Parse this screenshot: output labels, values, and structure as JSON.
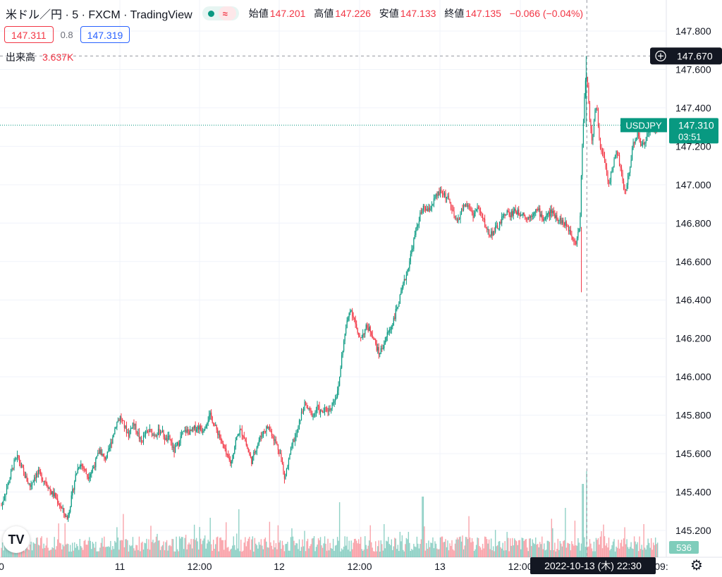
{
  "header": {
    "title": "米ドル／円 · 5 · FXCM · TradingView",
    "badge": "≈",
    "ohlc": [
      {
        "label": "始値",
        "value": "147.201"
      },
      {
        "label": "高値",
        "value": "147.226"
      },
      {
        "label": "安値",
        "value": "147.133"
      },
      {
        "label": "終値",
        "value": "147.135"
      }
    ],
    "change": "−0.066 (−0.04%)"
  },
  "quote": {
    "bid": "147.311",
    "spread": "0.8",
    "ask": "147.319"
  },
  "volume": {
    "label": "出来高",
    "value": "3.637K",
    "last_label": "536"
  },
  "crosshair": {
    "price_label": "147.670",
    "time_label": "2022-10-13 (木)  22:30"
  },
  "symbol_label": {
    "name": "USDJPY",
    "price": "147.310",
    "countdown": "03:51"
  },
  "colors": {
    "up": "#089981",
    "down": "#f23645",
    "grid": "#f0f3fa",
    "crosshair": "#9598a1"
  },
  "icons": {
    "logo": "tradingview-logo-icon",
    "settings": "gear-icon",
    "crosshair_add": "plus-circle-icon"
  },
  "chart_data": {
    "type": "candlestick",
    "symbol": "USDJPY",
    "interval": "5",
    "y_axis": {
      "ticks": [
        "147.800",
        "147.600",
        "147.400",
        "147.200",
        "147.000",
        "146.800",
        "146.600",
        "146.400",
        "146.200",
        "146.000",
        "145.800",
        "145.600",
        "145.400",
        "145.200"
      ],
      "range": [
        145.06,
        147.86
      ]
    },
    "x_axis": {
      "ticks": [
        "0",
        "11",
        "12:00",
        "12",
        "12:00",
        "13",
        "12:00",
        "09:"
      ]
    },
    "crosshair_price": 147.67,
    "last_price": 147.31,
    "price_path": [
      [
        0.0,
        145.33
      ],
      [
        0.6,
        145.4
      ],
      [
        1.2,
        145.47
      ],
      [
        1.8,
        145.55
      ],
      [
        2.4,
        145.58
      ],
      [
        3.0,
        145.52
      ],
      [
        3.6,
        145.47
      ],
      [
        4.2,
        145.43
      ],
      [
        4.8,
        145.48
      ],
      [
        5.4,
        145.5
      ],
      [
        6.0,
        145.47
      ],
      [
        6.6,
        145.45
      ],
      [
        7.2,
        145.4
      ],
      [
        7.8,
        145.38
      ],
      [
        8.4,
        145.34
      ],
      [
        9.0,
        145.3
      ],
      [
        9.6,
        145.26
      ],
      [
        10.2,
        145.36
      ],
      [
        10.8,
        145.48
      ],
      [
        11.4,
        145.55
      ],
      [
        12.0,
        145.53
      ],
      [
        12.6,
        145.48
      ],
      [
        13.2,
        145.51
      ],
      [
        13.8,
        145.56
      ],
      [
        14.4,
        145.62
      ],
      [
        15.0,
        145.57
      ],
      [
        15.6,
        145.6
      ],
      [
        16.2,
        145.68
      ],
      [
        16.8,
        145.76
      ],
      [
        17.4,
        145.79
      ],
      [
        18.0,
        145.74
      ],
      [
        18.6,
        145.7
      ],
      [
        19.2,
        145.76
      ],
      [
        19.8,
        145.72
      ],
      [
        20.4,
        145.66
      ],
      [
        21.0,
        145.7
      ],
      [
        21.6,
        145.72
      ],
      [
        22.2,
        145.7
      ],
      [
        22.8,
        145.71
      ],
      [
        23.4,
        145.72
      ],
      [
        24.0,
        145.67
      ],
      [
        24.6,
        145.68
      ],
      [
        25.2,
        145.61
      ],
      [
        25.8,
        145.65
      ],
      [
        26.4,
        145.7
      ],
      [
        27.0,
        145.72
      ],
      [
        27.6,
        145.71
      ],
      [
        28.2,
        145.73
      ],
      [
        28.8,
        145.74
      ],
      [
        29.4,
        145.72
      ],
      [
        30.0,
        145.77
      ],
      [
        30.6,
        145.8
      ],
      [
        31.2,
        145.74
      ],
      [
        31.8,
        145.7
      ],
      [
        32.4,
        145.64
      ],
      [
        33.0,
        145.58
      ],
      [
        33.6,
        145.55
      ],
      [
        34.2,
        145.66
      ],
      [
        34.8,
        145.72
      ],
      [
        35.4,
        145.7
      ],
      [
        36.0,
        145.62
      ],
      [
        36.6,
        145.56
      ],
      [
        37.2,
        145.63
      ],
      [
        37.8,
        145.68
      ],
      [
        38.4,
        145.72
      ],
      [
        39.0,
        145.74
      ],
      [
        39.6,
        145.7
      ],
      [
        40.2,
        145.65
      ],
      [
        40.8,
        145.6
      ],
      [
        41.4,
        145.47
      ],
      [
        42.0,
        145.56
      ],
      [
        42.6,
        145.66
      ],
      [
        43.2,
        145.7
      ],
      [
        43.8,
        145.8
      ],
      [
        44.4,
        145.86
      ],
      [
        45.0,
        145.82
      ],
      [
        45.6,
        145.8
      ],
      [
        46.2,
        145.84
      ],
      [
        46.8,
        145.81
      ],
      [
        47.4,
        145.83
      ],
      [
        48.0,
        145.83
      ],
      [
        48.6,
        145.88
      ],
      [
        49.2,
        145.92
      ],
      [
        49.8,
        146.12
      ],
      [
        50.4,
        146.26
      ],
      [
        51.0,
        146.36
      ],
      [
        51.6,
        146.3
      ],
      [
        52.2,
        146.2
      ],
      [
        52.8,
        146.22
      ],
      [
        53.4,
        146.26
      ],
      [
        54.0,
        146.24
      ],
      [
        54.6,
        146.18
      ],
      [
        55.2,
        146.12
      ],
      [
        55.8,
        146.16
      ],
      [
        56.4,
        146.22
      ],
      [
        57.0,
        146.26
      ],
      [
        57.6,
        146.33
      ],
      [
        58.2,
        146.4
      ],
      [
        58.8,
        146.48
      ],
      [
        59.4,
        146.56
      ],
      [
        60.0,
        146.66
      ],
      [
        60.6,
        146.76
      ],
      [
        61.2,
        146.84
      ],
      [
        61.8,
        146.88
      ],
      [
        62.4,
        146.86
      ],
      [
        63.0,
        146.9
      ],
      [
        63.6,
        146.94
      ],
      [
        64.2,
        146.96
      ],
      [
        64.8,
        146.95
      ],
      [
        65.4,
        146.92
      ],
      [
        66.0,
        146.85
      ],
      [
        66.6,
        146.8
      ],
      [
        67.2,
        146.86
      ],
      [
        67.8,
        146.9
      ],
      [
        68.4,
        146.88
      ],
      [
        69.0,
        146.84
      ],
      [
        69.6,
        146.88
      ],
      [
        70.2,
        146.84
      ],
      [
        70.8,
        146.78
      ],
      [
        71.4,
        146.74
      ],
      [
        72.0,
        146.76
      ],
      [
        72.6,
        146.78
      ],
      [
        73.2,
        146.82
      ],
      [
        73.8,
        146.86
      ],
      [
        74.4,
        146.84
      ],
      [
        75.0,
        146.87
      ],
      [
        75.6,
        146.85
      ],
      [
        76.2,
        146.86
      ],
      [
        76.8,
        146.82
      ],
      [
        77.4,
        146.84
      ],
      [
        78.0,
        146.87
      ],
      [
        78.6,
        146.86
      ],
      [
        79.2,
        146.82
      ],
      [
        79.8,
        146.84
      ],
      [
        80.4,
        146.86
      ],
      [
        81.0,
        146.84
      ],
      [
        81.6,
        146.82
      ],
      [
        82.2,
        146.8
      ],
      [
        82.8,
        146.78
      ],
      [
        83.4,
        146.74
      ],
      [
        84.0,
        146.7
      ],
      [
        84.6,
        146.8
      ],
      [
        84.9,
        147.18
      ],
      [
        85.2,
        147.42
      ],
      [
        85.5,
        147.6
      ],
      [
        85.8,
        147.48
      ],
      [
        86.1,
        147.3
      ],
      [
        86.4,
        147.22
      ],
      [
        86.7,
        147.35
      ],
      [
        87.0,
        147.42
      ],
      [
        87.3,
        147.3
      ],
      [
        87.6,
        147.2
      ],
      [
        88.2,
        147.12
      ],
      [
        88.8,
        147.0
      ],
      [
        89.4,
        147.1
      ],
      [
        90.0,
        147.18
      ],
      [
        90.6,
        147.06
      ],
      [
        91.2,
        146.95
      ],
      [
        91.8,
        147.08
      ],
      [
        92.4,
        147.22
      ],
      [
        93.0,
        147.26
      ],
      [
        93.6,
        147.2
      ],
      [
        94.2,
        147.24
      ],
      [
        94.8,
        147.3
      ],
      [
        95.4,
        147.28
      ],
      [
        96.0,
        147.31
      ]
    ],
    "volume_spikes": [
      [
        85.0,
        5200
      ],
      [
        85.6,
        6100
      ],
      [
        61.6,
        4300
      ],
      [
        49.4,
        3900
      ],
      [
        82.5,
        3500
      ],
      [
        30.5,
        2800
      ]
    ]
  }
}
